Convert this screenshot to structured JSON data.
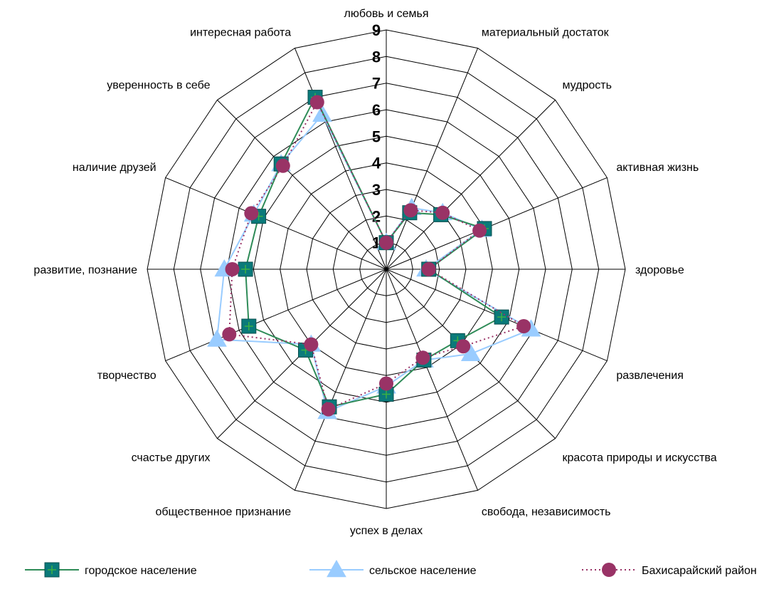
{
  "chart_data": {
    "type": "radar",
    "r_range": [
      0,
      9
    ],
    "r_ticks": [
      "1",
      "2",
      "3",
      "4",
      "5",
      "6",
      "7",
      "8",
      "9"
    ],
    "grid": true,
    "legend_position": "bottom",
    "categories": [
      "любовь и семья",
      "материальный достаток",
      "мудрость",
      "активная жизнь",
      "здоровье",
      "развлечения",
      "красота природы и искусства",
      "свобода, независимость",
      "успех в делах",
      "общественное признание",
      "счастье других",
      "творчество",
      "развитие, познание",
      "наличие друзей",
      "уверенность в себе",
      "интересная работа"
    ],
    "series": [
      {
        "name": "городское население",
        "color": "#2e8b57",
        "marker": "square",
        "marker_color": "#0a7a7a",
        "line_style": "solid",
        "values": [
          1.0,
          2.3,
          2.9,
          4.0,
          1.6,
          4.7,
          3.8,
          3.7,
          4.7,
          5.6,
          4.3,
          5.6,
          5.3,
          5.2,
          5.6,
          7.0
        ]
      },
      {
        "name": "сельское население",
        "color": "#99ccff",
        "marker": "triangle",
        "marker_color": "#99ccff",
        "line_style": "solid",
        "values": [
          1.0,
          2.5,
          3.0,
          3.9,
          1.5,
          5.9,
          4.5,
          3.7,
          4.4,
          5.8,
          4.0,
          6.9,
          6.1,
          5.4,
          5.6,
          6.3
        ]
      },
      {
        "name": "Бахисарайский район",
        "color": "#993366",
        "marker": "circle",
        "marker_color": "#993366",
        "line_style": "dotted",
        "values": [
          1.0,
          2.4,
          3.0,
          3.8,
          1.6,
          5.6,
          4.1,
          3.6,
          4.3,
          5.7,
          4.0,
          6.4,
          5.8,
          5.5,
          5.5,
          6.8
        ]
      }
    ]
  }
}
